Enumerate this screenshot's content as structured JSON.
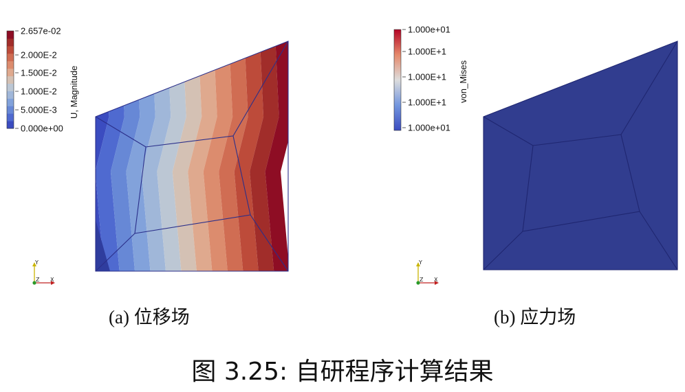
{
  "panel_a": {
    "colorbar_title": "U, Magnitude",
    "ticks": [
      "2.657e-02",
      "2.000E-2",
      "1.500E-2",
      "1.000E-2",
      "5.000E-3",
      "0.000e+00"
    ],
    "band_colors": [
      "#3b4cc0",
      "#4f6ad0",
      "#6788d6",
      "#82a2db",
      "#a0b7d9",
      "#bcc7d4",
      "#d4c1b4",
      "#dfa98e",
      "#dc8c6e",
      "#d06d53",
      "#bd4b3a",
      "#a12d2a",
      "#8e0d24"
    ],
    "caption_label": "(a)",
    "caption_text": "位移场"
  },
  "panel_b": {
    "colorbar_title": "von_Mises",
    "ticks": [
      "1.000e+01",
      "1.000E+1",
      "1.000E+1",
      "1.000E+1",
      "1.000e+01"
    ],
    "fill_color": "#313d8f",
    "caption_label": "(b)",
    "caption_text": "应力场"
  },
  "axes_triad": {
    "x": "X",
    "y": "Y",
    "z": "Z"
  },
  "figure_caption": "图 3.25: 自研程序计算结果"
}
